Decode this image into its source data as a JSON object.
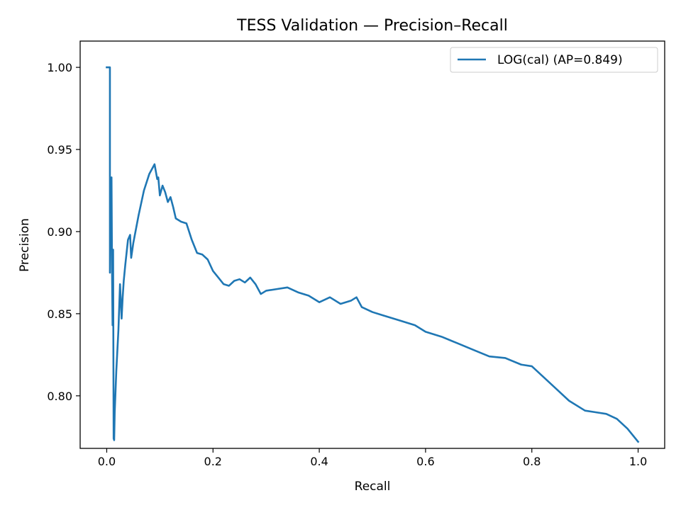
{
  "chart_data": {
    "type": "line",
    "title": "TESS Validation — Precision–Recall",
    "xlabel": "Recall",
    "ylabel": "Precision",
    "xlim": [
      -0.05,
      1.05
    ],
    "ylim": [
      0.768,
      1.016
    ],
    "xticks": [
      0.0,
      0.2,
      0.4,
      0.6,
      0.8,
      1.0
    ],
    "xtick_labels": [
      "0.0",
      "0.2",
      "0.4",
      "0.6",
      "0.8",
      "1.0"
    ],
    "yticks": [
      0.8,
      0.85,
      0.9,
      0.95,
      1.0
    ],
    "ytick_labels": [
      "0.80",
      "0.85",
      "0.90",
      "0.95",
      "1.00"
    ],
    "grid": false,
    "legend_position": "top-right",
    "series": [
      {
        "name": "LOG(cal) (AP=0.849)",
        "color": "#1f77b4",
        "x": [
          0.0,
          0.006,
          0.006,
          0.007,
          0.008,
          0.009,
          0.01,
          0.011,
          0.012,
          0.013,
          0.014,
          0.015,
          0.018,
          0.022,
          0.025,
          0.028,
          0.03,
          0.032,
          0.035,
          0.04,
          0.044,
          0.046,
          0.05,
          0.06,
          0.07,
          0.08,
          0.09,
          0.095,
          0.097,
          0.1,
          0.105,
          0.11,
          0.115,
          0.12,
          0.125,
          0.13,
          0.14,
          0.15,
          0.16,
          0.17,
          0.18,
          0.19,
          0.2,
          0.21,
          0.22,
          0.23,
          0.24,
          0.25,
          0.26,
          0.27,
          0.28,
          0.29,
          0.3,
          0.32,
          0.34,
          0.36,
          0.38,
          0.4,
          0.42,
          0.44,
          0.46,
          0.47,
          0.48,
          0.5,
          0.52,
          0.55,
          0.58,
          0.6,
          0.63,
          0.66,
          0.69,
          0.72,
          0.75,
          0.78,
          0.8,
          0.82,
          0.85,
          0.87,
          0.9,
          0.92,
          0.94,
          0.96,
          0.98,
          1.0
        ],
        "y": [
          1.0,
          1.0,
          0.875,
          0.925,
          0.89,
          0.933,
          0.875,
          0.843,
          0.889,
          0.774,
          0.773,
          0.79,
          0.815,
          0.84,
          0.868,
          0.847,
          0.86,
          0.87,
          0.88,
          0.895,
          0.898,
          0.884,
          0.893,
          0.91,
          0.925,
          0.935,
          0.941,
          0.932,
          0.933,
          0.922,
          0.928,
          0.924,
          0.918,
          0.921,
          0.915,
          0.908,
          0.906,
          0.905,
          0.895,
          0.887,
          0.886,
          0.883,
          0.876,
          0.872,
          0.868,
          0.867,
          0.87,
          0.871,
          0.869,
          0.872,
          0.868,
          0.862,
          0.864,
          0.865,
          0.866,
          0.863,
          0.861,
          0.857,
          0.86,
          0.856,
          0.858,
          0.86,
          0.854,
          0.851,
          0.849,
          0.846,
          0.843,
          0.839,
          0.836,
          0.832,
          0.828,
          0.824,
          0.823,
          0.819,
          0.818,
          0.812,
          0.803,
          0.797,
          0.791,
          0.79,
          0.789,
          0.786,
          0.78,
          0.772
        ]
      }
    ]
  }
}
